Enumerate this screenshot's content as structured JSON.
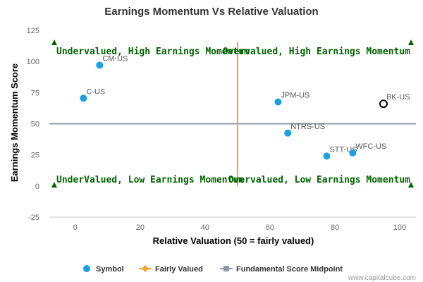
{
  "chart_data": {
    "type": "scatter",
    "title": "Earnings Momentum Vs Relative Valuation",
    "xlabel": "Relative Valuation (50 = fairly valued)",
    "ylabel": "Earnings Momentum Score",
    "xlim": [
      -8,
      105
    ],
    "ylim": [
      -25,
      125
    ],
    "xticks": [
      0,
      20,
      40,
      60,
      80,
      100
    ],
    "yticks": [
      -25,
      0,
      25,
      50,
      75,
      100,
      125
    ],
    "points": [
      {
        "label": "CM-US",
        "x": 7.5,
        "y": 97,
        "highlight": false
      },
      {
        "label": "C-US",
        "x": 2.5,
        "y": 70.5,
        "highlight": false
      },
      {
        "label": "JPM-US",
        "x": 62.5,
        "y": 67.5,
        "highlight": false
      },
      {
        "label": "NTRS-US",
        "x": 65.5,
        "y": 42.5,
        "highlight": false
      },
      {
        "label": "STT-US",
        "x": 77.5,
        "y": 24,
        "highlight": false
      },
      {
        "label": "WFC-US",
        "x": 85.5,
        "y": 26.5,
        "highlight": false
      },
      {
        "label": "BK-US",
        "x": 95,
        "y": 66,
        "highlight": true
      }
    ],
    "reference_lines": {
      "fairly_valued_x": 50,
      "midpoint_y": 50
    },
    "quadrant_labels": {
      "top_left": "Undervalued, High Earnings Momentum",
      "top_right": "Overvalued, High Earnings Momentum",
      "bottom_left": "UnderValued, Low Earnings Momentum",
      "bottom_right": "Overvalued, Low Earnings Momentum"
    },
    "legend": {
      "placement": "bottom-center",
      "items": [
        {
          "name": "Symbol",
          "kind": "marker"
        },
        {
          "name": "Fairly Valued",
          "kind": "line-diamond"
        },
        {
          "name": "Fundamental Score Midpoint",
          "kind": "line-square"
        }
      ]
    },
    "colors": {
      "symbol": "#1ba1e2",
      "fairly_valued": "#f7a034",
      "midpoint": "#8f99a7",
      "quadrant_text": "#006400",
      "highlight_stroke": "#000000"
    },
    "credit": "www.capitalcube.com"
  }
}
